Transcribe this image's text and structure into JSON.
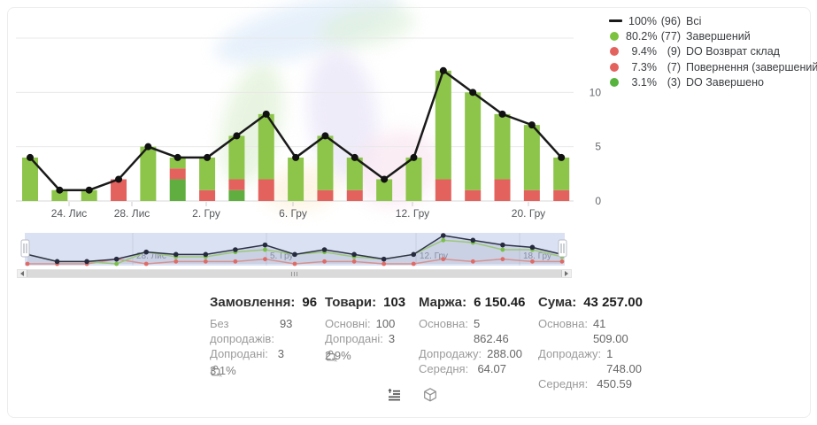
{
  "legend": {
    "items": [
      {
        "marker": "line",
        "color": "#1a1a1a",
        "percent": "100%",
        "count": "(96)",
        "label": "Всі"
      },
      {
        "marker": "dot",
        "color": "#7cc23e",
        "percent": "80.2%",
        "count": "(77)",
        "label": "Завершений"
      },
      {
        "marker": "dot",
        "color": "#e4625e",
        "percent": "9.4%",
        "count": "(9)",
        "label": "DO Возврат склад"
      },
      {
        "marker": "dot",
        "color": "#e4625e",
        "percent": "7.3%",
        "count": "(7)",
        "label": "Повернення (завершений)"
      },
      {
        "marker": "dot",
        "color": "#57b33e",
        "percent": "3.1%",
        "count": "(3)",
        "label": "DO Завершено"
      }
    ]
  },
  "chart_data": {
    "type": "bar",
    "title": "",
    "y_ticks": [
      0,
      5,
      10
    ],
    "y_max": 15,
    "x_ticks": [
      {
        "label": "24. Лис",
        "x": 78
      },
      {
        "label": "28. Лис",
        "x": 149
      },
      {
        "label": "2. Гру",
        "x": 233
      },
      {
        "label": "6. Гру",
        "x": 331
      },
      {
        "label": "12. Гру",
        "x": 466
      },
      {
        "label": "20. Гру",
        "x": 597
      }
    ],
    "bar_segment_colors": {
      "green": "#8cc549",
      "green_dark": "#5fae3f",
      "red": "#e4625e"
    },
    "line_series": {
      "name": "Всі",
      "color": "#1a1a1a",
      "values": [
        4,
        1,
        1,
        2,
        5,
        4,
        4,
        6,
        8,
        4,
        6,
        4,
        2,
        4,
        12,
        10,
        8,
        7,
        4
      ]
    },
    "bars": [
      {
        "segments": [
          [
            "green",
            4
          ]
        ]
      },
      {
        "segments": [
          [
            "green",
            1
          ]
        ]
      },
      {
        "segments": [
          [
            "green",
            1
          ]
        ]
      },
      {
        "segments": [
          [
            "red",
            2
          ]
        ]
      },
      {
        "segments": [
          [
            "green",
            5
          ]
        ]
      },
      {
        "segments": [
          [
            "green_dark",
            2
          ],
          [
            "red",
            1
          ],
          [
            "green",
            1
          ]
        ]
      },
      {
        "segments": [
          [
            "red",
            1
          ],
          [
            "green",
            3
          ]
        ]
      },
      {
        "segments": [
          [
            "green_dark",
            1
          ],
          [
            "red",
            1
          ],
          [
            "green",
            4
          ]
        ]
      },
      {
        "segments": [
          [
            "red",
            2
          ],
          [
            "green",
            6
          ]
        ]
      },
      {
        "segments": [
          [
            "green",
            4
          ]
        ]
      },
      {
        "segments": [
          [
            "red",
            1
          ],
          [
            "green",
            5
          ]
        ]
      },
      {
        "segments": [
          [
            "red",
            1
          ],
          [
            "green",
            3
          ]
        ]
      },
      {
        "segments": [
          [
            "green",
            2
          ]
        ]
      },
      {
        "segments": [
          [
            "green",
            4
          ]
        ]
      },
      {
        "segments": [
          [
            "red",
            2
          ],
          [
            "green",
            10
          ]
        ]
      },
      {
        "segments": [
          [
            "red",
            1
          ],
          [
            "green",
            9
          ]
        ]
      },
      {
        "segments": [
          [
            "red",
            2
          ],
          [
            "green",
            6
          ]
        ]
      },
      {
        "segments": [
          [
            "red",
            1
          ],
          [
            "green",
            6
          ]
        ]
      },
      {
        "segments": [
          [
            "red",
            1
          ],
          [
            "green",
            3
          ]
        ]
      }
    ]
  },
  "navigator": {
    "band_color": "#dae1f3",
    "labels": [
      {
        "label": "28. Лис",
        "x": 150
      },
      {
        "label": "5. Гру",
        "x": 301
      },
      {
        "label": "12. Гру",
        "x": 470
      },
      {
        "label": "18. Гру",
        "x": 587
      }
    ],
    "series": {
      "all": {
        "color": "#2e3247",
        "dot": "#262a3e",
        "values": [
          4,
          1,
          1,
          2,
          5,
          4,
          4,
          6,
          8,
          4,
          6,
          4,
          2,
          4,
          12,
          10,
          8,
          7,
          4
        ]
      },
      "green": {
        "color": "#9cc878",
        "dot": "#7bbf4a",
        "values": [
          4,
          1,
          1,
          0,
          5,
          3,
          3,
          5,
          6,
          4,
          5,
          3,
          2,
          4,
          10,
          9,
          6,
          6,
          3
        ]
      },
      "red": {
        "color": "#d69390",
        "dot": "#df6b66",
        "values": [
          0,
          0,
          0,
          2,
          0,
          1,
          1,
          1,
          2,
          0,
          1,
          1,
          0,
          0,
          2,
          1,
          2,
          1,
          1
        ]
      }
    }
  },
  "scrollbar": {
    "left_arrow_icon": "triangle-left-icon",
    "right_arrow_icon": "triangle-right-icon"
  },
  "stats": {
    "cards": [
      {
        "title": "Замовлення:",
        "value": "96",
        "rows": [
          [
            "Без допродажів:",
            "93"
          ],
          [
            "Допродані:",
            "3"
          ]
        ],
        "percent": "3.1%"
      },
      {
        "title": "Товари:",
        "value": "103",
        "rows": [
          [
            "Основні:",
            "100"
          ],
          [
            "Допродані:",
            "3"
          ]
        ],
        "percent": "2.9%"
      },
      {
        "title": "Маржа:",
        "value": "6 150.46",
        "rows": [
          [
            "Основна:",
            "5 862.46"
          ],
          [
            "Допродажу:",
            "288.00"
          ],
          [
            "Середня:",
            "64.07"
          ]
        ]
      },
      {
        "title": "Сума:",
        "value": "43 257.00",
        "rows": [
          [
            "Основна:",
            "41 509.00"
          ],
          [
            "Допродажу:",
            "1 748.00"
          ],
          [
            "Середня:",
            "450.59"
          ]
        ]
      }
    ]
  },
  "footer": {
    "icons": [
      "list-summary-icon",
      "package-icon"
    ]
  }
}
